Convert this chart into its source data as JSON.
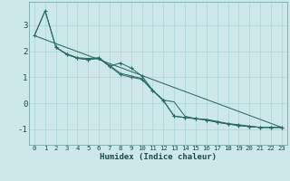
{
  "xlabel": "Humidex (Indice chaleur)",
  "ylabel": "",
  "bg_color": "#cde8e8",
  "grid_color": "#b0d8d8",
  "line_color": "#2a6b65",
  "xlim": [
    -0.5,
    23.5
  ],
  "ylim": [
    -1.6,
    3.9
  ],
  "yticks": [
    -1,
    0,
    1,
    2,
    3
  ],
  "xticks": [
    0,
    1,
    2,
    3,
    4,
    5,
    6,
    7,
    8,
    9,
    10,
    11,
    12,
    13,
    14,
    15,
    16,
    17,
    18,
    19,
    20,
    21,
    22,
    23
  ],
  "series": [
    {
      "x": [
        0,
        1,
        2,
        3,
        4,
        5,
        6,
        7,
        8,
        9,
        10,
        11,
        12,
        13,
        14,
        15,
        16,
        17,
        18,
        19,
        20,
        21,
        22,
        23
      ],
      "y": [
        2.6,
        3.55,
        2.15,
        1.9,
        1.75,
        1.72,
        1.75,
        1.45,
        1.15,
        1.05,
        0.95,
        0.5,
        0.12,
        0.05,
        -0.5,
        -0.6,
        -0.62,
        -0.7,
        -0.78,
        -0.83,
        -0.88,
        -0.93,
        -0.93,
        -0.93
      ],
      "marker": false
    },
    {
      "x": [
        0,
        1,
        2,
        3,
        4,
        5,
        6,
        7,
        8,
        9,
        10,
        11,
        12,
        13,
        14,
        15,
        16,
        17,
        18,
        19,
        20,
        21,
        22,
        23
      ],
      "y": [
        2.6,
        3.55,
        2.15,
        1.88,
        1.73,
        1.68,
        1.73,
        1.42,
        1.55,
        1.35,
        1.05,
        0.5,
        0.1,
        -0.5,
        -0.55,
        -0.6,
        -0.65,
        -0.73,
        -0.8,
        -0.86,
        -0.9,
        -0.93,
        -0.93,
        -0.93
      ],
      "marker": true
    },
    {
      "x": [
        2,
        3,
        4,
        5,
        6,
        7,
        8,
        9,
        10,
        11,
        12,
        13,
        14,
        15,
        16,
        17,
        18,
        19,
        20,
        21,
        22,
        23
      ],
      "y": [
        2.15,
        1.88,
        1.73,
        1.68,
        1.73,
        1.42,
        1.1,
        1.0,
        0.92,
        0.48,
        0.1,
        -0.5,
        -0.55,
        -0.58,
        -0.65,
        -0.73,
        -0.8,
        -0.85,
        -0.9,
        -0.93,
        -0.93,
        -0.93
      ],
      "marker": true
    },
    {
      "x": [
        0,
        23
      ],
      "y": [
        2.6,
        -0.93
      ],
      "marker": false
    }
  ]
}
